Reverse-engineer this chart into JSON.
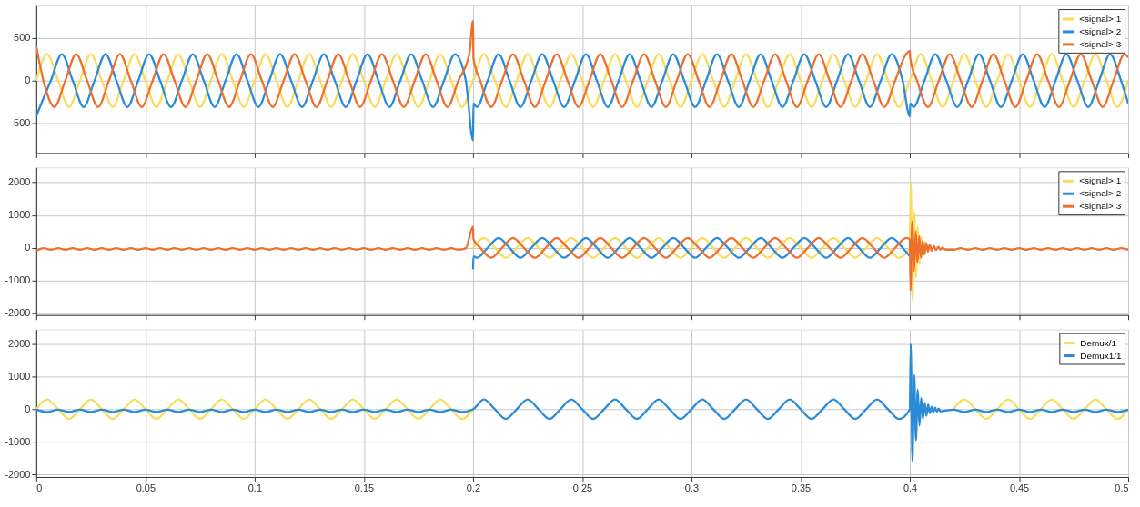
{
  "chart_data": [
    {
      "type": "line",
      "xlim": [
        0,
        0.5
      ],
      "xticks": [
        0,
        0.05,
        0.1,
        0.15,
        0.2,
        0.25,
        0.3,
        0.35,
        0.4,
        0.45,
        0.5
      ],
      "ylim": [
        -850,
        880
      ],
      "yticks": [
        -500,
        0,
        500
      ],
      "grid": true,
      "legend": "top right",
      "tick_labels": "y",
      "x": [
        0,
        0.005,
        0.01,
        0.015,
        0.02,
        0.025,
        0.03,
        0.035,
        0.04,
        0.045,
        0.05,
        0.055,
        0.06,
        0.065,
        0.07,
        0.075,
        0.08,
        0.085,
        0.09,
        0.095,
        0.1,
        0.105,
        0.11,
        0.115,
        0.12,
        0.125,
        0.13,
        0.135,
        0.14,
        0.145,
        0.15,
        0.155,
        0.16,
        0.165,
        0.17,
        0.175,
        0.18,
        0.185,
        0.19,
        0.195,
        0.2,
        0.205,
        0.21,
        0.215,
        0.22,
        0.225,
        0.23,
        0.235,
        0.24,
        0.245,
        0.25,
        0.255,
        0.26,
        0.265,
        0.27,
        0.275,
        0.28,
        0.285,
        0.29,
        0.295,
        0.3,
        0.305,
        0.31,
        0.315,
        0.32,
        0.325,
        0.33,
        0.335,
        0.34,
        0.345,
        0.35,
        0.355,
        0.36,
        0.365,
        0.37,
        0.375,
        0.38,
        0.385,
        0.39,
        0.395,
        0.4,
        0.405,
        0.41,
        0.415,
        0.42,
        0.425,
        0.43,
        0.435,
        0.44,
        0.445,
        0.45,
        0.455,
        0.46,
        0.465,
        0.47,
        0.475,
        0.48,
        0.485,
        0.49,
        0.495,
        0.5
      ],
      "series": [
        {
          "name": "<signal>:1",
          "color": "#f9dc5c",
          "values": [
            0,
            310,
            0,
            -310,
            0,
            310,
            0,
            -310,
            0,
            310,
            0,
            -310,
            0,
            310,
            0,
            -310,
            0,
            310,
            0,
            -310,
            0,
            310,
            0,
            -310,
            0,
            310,
            0,
            -310,
            0,
            310,
            0,
            -310,
            0,
            310,
            0,
            -310,
            0,
            310,
            0,
            -310,
            0,
            310,
            0,
            -310,
            0,
            310,
            0,
            -310,
            0,
            310,
            0,
            -310,
            0,
            310,
            0,
            -310,
            0,
            310,
            0,
            -310,
            0,
            310,
            0,
            -310,
            0,
            310,
            0,
            -310,
            0,
            310,
            0,
            -310,
            0,
            310,
            0,
            -310,
            0,
            310,
            0,
            -310,
            0,
            310,
            0,
            -310,
            0,
            310,
            0,
            -310,
            0,
            310,
            0,
            -310,
            0,
            310,
            0,
            -310,
            0,
            310,
            0,
            -310,
            0
          ]
        },
        {
          "name": "<signal>:2",
          "color": "#2a8bd8",
          "x": [
            0,
            0.0017,
            0.0067,
            0.0117,
            0.0167,
            0.0217,
            0.0267,
            0.0317,
            0.0367,
            0.0417,
            0.0467,
            0.0517,
            0.0567,
            0.0617,
            0.0667,
            0.0717,
            0.0767,
            0.0817,
            0.0867,
            0.0917,
            0.0967,
            0.1017,
            0.1067,
            0.1117,
            0.1167,
            0.1217,
            0.1267,
            0.1317,
            0.1367,
            0.1417,
            0.1467,
            0.1517,
            0.1567,
            0.1617,
            0.1667,
            0.1717,
            0.1767,
            0.1817,
            0.1867,
            0.1917,
            0.1967,
            0.2,
            0.2002,
            0.2017,
            0.2067,
            0.2117,
            0.2167,
            0.2217,
            0.2267,
            0.2317,
            0.2367,
            0.2417,
            0.2467,
            0.2517,
            0.2567,
            0.2617,
            0.2667,
            0.2717,
            0.2767,
            0.2817,
            0.2867,
            0.2917,
            0.2967,
            0.3017,
            0.3067,
            0.3117,
            0.3167,
            0.3217,
            0.3267,
            0.3317,
            0.3367,
            0.3417,
            0.3467,
            0.3517,
            0.3567,
            0.3617,
            0.3667,
            0.3717,
            0.3767,
            0.3817,
            0.3867,
            0.3917,
            0.3967,
            0.4,
            0.4002,
            0.4017,
            0.4067,
            0.4117,
            0.4167,
            0.4217,
            0.4267,
            0.4317,
            0.4367,
            0.4417,
            0.4467,
            0.4517,
            0.4567,
            0.4617,
            0.4667,
            0.4717,
            0.4767,
            0.4817,
            0.4867,
            0.4917,
            0.4967,
            0.5
          ],
          "values": [
            -420,
            -310,
            0,
            310,
            0,
            -310,
            0,
            310,
            0,
            -310,
            0,
            310,
            0,
            -310,
            0,
            310,
            0,
            -310,
            0,
            310,
            0,
            -310,
            0,
            310,
            0,
            -310,
            0,
            310,
            0,
            -310,
            0,
            310,
            0,
            -310,
            0,
            310,
            0,
            -310,
            0,
            310,
            0,
            -700,
            -270,
            -310,
            0,
            310,
            0,
            -310,
            0,
            310,
            0,
            -310,
            0,
            310,
            0,
            -310,
            0,
            310,
            0,
            -310,
            0,
            310,
            0,
            -310,
            0,
            310,
            0,
            -310,
            0,
            310,
            0,
            -310,
            0,
            310,
            0,
            -310,
            0,
            310,
            0,
            -310,
            0,
            310,
            0,
            -420,
            -270,
            -310,
            0,
            310,
            0,
            -310,
            0,
            310,
            0,
            -310,
            0,
            310,
            0,
            -310,
            0,
            310,
            0,
            -310,
            0,
            310,
            0,
            -270
          ]
        },
        {
          "name": "<signal>:3",
          "color": "#ee6f2e",
          "x": [
            0,
            0.0033,
            0.0083,
            0.0133,
            0.0183,
            0.0233,
            0.0283,
            0.0333,
            0.0383,
            0.0433,
            0.0483,
            0.0533,
            0.0583,
            0.0633,
            0.0683,
            0.0733,
            0.0783,
            0.0833,
            0.0883,
            0.0933,
            0.0983,
            0.1033,
            0.1083,
            0.1133,
            0.1183,
            0.1233,
            0.1283,
            0.1333,
            0.1383,
            0.1433,
            0.1483,
            0.1533,
            0.1583,
            0.1633,
            0.1683,
            0.1733,
            0.1783,
            0.1833,
            0.1883,
            0.1933,
            0.1983,
            0.2,
            0.2002,
            0.2033,
            0.2083,
            0.2133,
            0.2183,
            0.2233,
            0.2283,
            0.2333,
            0.2383,
            0.2433,
            0.2483,
            0.2533,
            0.2583,
            0.2633,
            0.2683,
            0.2733,
            0.2783,
            0.2833,
            0.2883,
            0.2933,
            0.2983,
            0.3033,
            0.3083,
            0.3133,
            0.3183,
            0.3233,
            0.3283,
            0.3333,
            0.3383,
            0.3433,
            0.3483,
            0.3533,
            0.3583,
            0.3633,
            0.3683,
            0.3733,
            0.3783,
            0.3833,
            0.3883,
            0.3933,
            0.3983,
            0.4,
            0.4002,
            0.4033,
            0.4083,
            0.4133,
            0.4183,
            0.4233,
            0.4283,
            0.4333,
            0.4383,
            0.4433,
            0.4483,
            0.4533,
            0.4583,
            0.4633,
            0.4683,
            0.4733,
            0.4783,
            0.4833,
            0.4883,
            0.4933,
            0.4983,
            0.5
          ],
          "values": [
            400,
            0,
            -310,
            0,
            310,
            0,
            -310,
            0,
            310,
            0,
            -310,
            0,
            310,
            0,
            -310,
            0,
            310,
            0,
            -310,
            0,
            310,
            0,
            -310,
            0,
            310,
            0,
            -310,
            0,
            310,
            0,
            -310,
            0,
            310,
            0,
            -310,
            0,
            310,
            0,
            -310,
            0,
            310,
            700,
            260,
            0,
            -310,
            0,
            310,
            0,
            -310,
            0,
            310,
            0,
            -310,
            0,
            310,
            0,
            -310,
            0,
            310,
            0,
            -310,
            0,
            310,
            0,
            -310,
            0,
            310,
            0,
            -310,
            0,
            310,
            0,
            -310,
            0,
            310,
            0,
            -310,
            0,
            310,
            0,
            -310,
            0,
            310,
            350,
            260,
            0,
            -310,
            0,
            310,
            0,
            -310,
            0,
            310,
            0,
            -310,
            0,
            310,
            0,
            -310,
            0,
            310,
            0,
            -310,
            0,
            310,
            270
          ]
        }
      ]
    },
    {
      "type": "line",
      "xlim": [
        0,
        0.5
      ],
      "xticks": [
        0,
        0.05,
        0.1,
        0.15,
        0.2,
        0.25,
        0.3,
        0.35,
        0.4,
        0.45,
        0.5
      ],
      "ylim": [
        -2050,
        2450
      ],
      "yticks": [
        -2000,
        -1000,
        0,
        1000,
        2000
      ],
      "grid": true,
      "legend": "top right",
      "tick_labels": "y",
      "series": [
        {
          "name": "<signal>:1",
          "color": "#f9dc5c",
          "x": [
            0.2,
            0.205,
            0.21,
            0.215,
            0.22,
            0.225,
            0.23,
            0.235,
            0.24,
            0.245,
            0.25,
            0.255,
            0.26,
            0.265,
            0.27,
            0.275,
            0.28,
            0.285,
            0.29,
            0.295,
            0.3,
            0.305,
            0.31,
            0.315,
            0.32,
            0.325,
            0.33,
            0.335,
            0.34,
            0.345,
            0.35,
            0.355,
            0.36,
            0.365,
            0.37,
            0.375,
            0.38,
            0.385,
            0.39,
            0.395,
            0.4,
            0.4004,
            0.4012,
            0.402,
            0.4028,
            0.4036,
            0.4044,
            0.4052,
            0.406,
            0.4068
          ],
          "values": [
            0,
            300,
            0,
            -300,
            0,
            300,
            0,
            -300,
            0,
            300,
            0,
            -300,
            0,
            300,
            0,
            -300,
            0,
            300,
            0,
            -300,
            0,
            300,
            0,
            -300,
            0,
            300,
            0,
            -300,
            0,
            300,
            0,
            -300,
            0,
            300,
            0,
            -300,
            0,
            300,
            0,
            -300,
            0,
            2000,
            -1600,
            1100,
            -900,
            650,
            -500,
            350,
            -300,
            200
          ]
        },
        {
          "name": "<signal>:2",
          "color": "#2a8bd8",
          "x": [
            0.2,
            0.2002,
            0.2017,
            0.2067,
            0.2117,
            0.2167,
            0.2217,
            0.2267,
            0.2317,
            0.2367,
            0.2417,
            0.2467,
            0.2517,
            0.2567,
            0.2617,
            0.2667,
            0.2717,
            0.2767,
            0.2817,
            0.2867,
            0.2917,
            0.2967,
            0.3017,
            0.3067,
            0.3117,
            0.3167,
            0.3217,
            0.3267,
            0.3317,
            0.3367,
            0.3417,
            0.3467,
            0.3517,
            0.3567,
            0.3617,
            0.3667,
            0.3717,
            0.3767,
            0.3817,
            0.3867,
            0.3917,
            0.3967,
            0.4
          ],
          "values": [
            -650,
            -260,
            -300,
            0,
            300,
            0,
            -300,
            0,
            300,
            0,
            -300,
            0,
            300,
            0,
            -300,
            0,
            300,
            0,
            -300,
            0,
            300,
            0,
            -300,
            0,
            300,
            0,
            -300,
            0,
            300,
            0,
            -300,
            0,
            300,
            0,
            -300,
            0,
            300,
            0,
            -300,
            0,
            300,
            0,
            -260
          ]
        },
        {
          "name": "<signal>:3",
          "color": "#ee6f2e",
          "x": [
            0,
            0.0033,
            0.0067,
            0.01,
            0.0133,
            0.0167,
            0.02,
            0.0233,
            0.0267,
            0.03,
            0.0333,
            0.0367,
            0.04,
            0.0433,
            0.0467,
            0.05,
            0.0533,
            0.0567,
            0.06,
            0.0633,
            0.0667,
            0.07,
            0.0733,
            0.0767,
            0.08,
            0.0833,
            0.0867,
            0.09,
            0.0933,
            0.0967,
            0.1,
            0.1033,
            0.1067,
            0.11,
            0.1133,
            0.1167,
            0.12,
            0.1233,
            0.1267,
            0.13,
            0.1333,
            0.1367,
            0.14,
            0.1433,
            0.1467,
            0.15,
            0.1533,
            0.1567,
            0.16,
            0.1633,
            0.1667,
            0.17,
            0.1733,
            0.1767,
            0.18,
            0.1833,
            0.1867,
            0.19,
            0.1933,
            0.1967,
            0.2,
            0.2002,
            0.2033,
            0.2083,
            0.2133,
            0.2183,
            0.2233,
            0.2283,
            0.2333,
            0.2383,
            0.2433,
            0.2483,
            0.2533,
            0.2583,
            0.2633,
            0.2683,
            0.2733,
            0.2783,
            0.2833,
            0.2883,
            0.2933,
            0.2983,
            0.3033,
            0.3083,
            0.3133,
            0.3183,
            0.3233,
            0.3283,
            0.3333,
            0.3383,
            0.3433,
            0.3483,
            0.3533,
            0.3583,
            0.3633,
            0.3683,
            0.3733,
            0.3783,
            0.3833,
            0.3883,
            0.3933,
            0.3983,
            0.4,
            0.4003,
            0.4011,
            0.4019,
            0.4027,
            0.4035,
            0.4043,
            0.4051,
            0.4059,
            0.4067,
            0.4075,
            0.4083,
            0.4091,
            0.41,
            0.411,
            0.412,
            0.413,
            0.414,
            0.415,
            0.416,
            0.42,
            0.4233,
            0.4267,
            0.43,
            0.4333,
            0.4367,
            0.44,
            0.4433,
            0.4467,
            0.45,
            0.4533,
            0.4567,
            0.46,
            0.4633,
            0.4667,
            0.47,
            0.4733,
            0.4767,
            0.48,
            0.4833,
            0.4867,
            0.49,
            0.4933,
            0.4967,
            0.5
          ],
          "values": [
            -100,
            -10,
            -60,
            -10,
            -60,
            -10,
            -60,
            -10,
            -60,
            -10,
            -60,
            -10,
            -60,
            -10,
            -60,
            -10,
            -60,
            -10,
            -60,
            -10,
            -60,
            -10,
            -60,
            -10,
            -60,
            -10,
            -60,
            -10,
            -60,
            -10,
            -60,
            -10,
            -60,
            -10,
            -60,
            -10,
            -60,
            -10,
            -60,
            -10,
            -60,
            -10,
            -60,
            -10,
            -60,
            -10,
            -60,
            -10,
            -60,
            -10,
            -60,
            -10,
            -60,
            -10,
            -60,
            -10,
            -60,
            -10,
            -60,
            -10,
            650,
            260,
            0,
            -300,
            0,
            300,
            0,
            -300,
            0,
            300,
            0,
            -300,
            0,
            300,
            0,
            -300,
            0,
            300,
            0,
            -300,
            0,
            300,
            0,
            -300,
            0,
            300,
            0,
            -300,
            0,
            300,
            0,
            -300,
            0,
            300,
            0,
            -300,
            0,
            300,
            0,
            -300,
            0,
            300,
            260,
            -1300,
            800,
            -700,
            500,
            -450,
            350,
            -300,
            200,
            -200,
            150,
            -120,
            100,
            -90,
            60,
            -70,
            30,
            -60,
            10,
            -50,
            -60,
            -10,
            -60,
            -10,
            -60,
            -10,
            -60,
            -10,
            -60,
            -10,
            -60,
            -10,
            -60,
            -10,
            -60,
            -10,
            -60,
            -10,
            -60,
            -10,
            -60,
            -10,
            -60,
            -10,
            -60
          ]
        }
      ]
    },
    {
      "type": "line",
      "xlim": [
        0,
        0.5
      ],
      "xticks": [
        0,
        0.05,
        0.1,
        0.15,
        0.2,
        0.25,
        0.3,
        0.35,
        0.4,
        0.45,
        0.5
      ],
      "ylim": [
        -2080,
        2450
      ],
      "yticks": [
        -2000,
        -1000,
        0,
        1000,
        2000
      ],
      "grid": true,
      "legend": "top right",
      "series": [
        {
          "name": "Demux/1",
          "color": "#f9dc5c",
          "x": [
            0,
            0.005,
            0.01,
            0.015,
            0.02,
            0.025,
            0.03,
            0.035,
            0.04,
            0.045,
            0.05,
            0.055,
            0.06,
            0.065,
            0.07,
            0.075,
            0.08,
            0.085,
            0.09,
            0.095,
            0.1,
            0.105,
            0.11,
            0.115,
            0.12,
            0.125,
            0.13,
            0.135,
            0.14,
            0.145,
            0.15,
            0.155,
            0.16,
            0.165,
            0.17,
            0.175,
            0.18,
            0.185,
            0.19,
            0.195,
            0.2,
            0.3,
            0.42,
            0.425,
            0.43,
            0.435,
            0.44,
            0.445,
            0.45,
            0.455,
            0.46,
            0.465,
            0.47,
            0.475,
            0.48,
            0.485,
            0.49,
            0.495,
            0.5
          ],
          "values": [
            0,
            300,
            0,
            -300,
            0,
            300,
            0,
            -300,
            0,
            300,
            0,
            -300,
            0,
            300,
            0,
            -300,
            0,
            300,
            0,
            -300,
            0,
            300,
            0,
            -300,
            0,
            300,
            0,
            -300,
            0,
            300,
            0,
            -300,
            0,
            300,
            0,
            -300,
            0,
            300,
            0,
            -300,
            0,
            null,
            0,
            300,
            0,
            -300,
            0,
            300,
            0,
            -300,
            0,
            300,
            0,
            -300,
            0,
            300,
            0,
            -300,
            0
          ]
        },
        {
          "name": "Demux1/1",
          "color": "#2a8bd8",
          "x": [
            0,
            0.005,
            0.01,
            0.015,
            0.02,
            0.025,
            0.03,
            0.035,
            0.04,
            0.045,
            0.05,
            0.055,
            0.06,
            0.065,
            0.07,
            0.075,
            0.08,
            0.085,
            0.09,
            0.095,
            0.1,
            0.105,
            0.11,
            0.115,
            0.12,
            0.125,
            0.13,
            0.135,
            0.14,
            0.145,
            0.15,
            0.155,
            0.16,
            0.165,
            0.17,
            0.175,
            0.18,
            0.185,
            0.19,
            0.195,
            0.2,
            0.205,
            0.21,
            0.215,
            0.22,
            0.225,
            0.23,
            0.235,
            0.24,
            0.245,
            0.25,
            0.255,
            0.26,
            0.265,
            0.27,
            0.275,
            0.28,
            0.285,
            0.29,
            0.295,
            0.3,
            0.305,
            0.31,
            0.315,
            0.32,
            0.325,
            0.33,
            0.335,
            0.34,
            0.345,
            0.35,
            0.355,
            0.36,
            0.365,
            0.37,
            0.375,
            0.38,
            0.385,
            0.39,
            0.395,
            0.4,
            0.4004,
            0.4012,
            0.402,
            0.4028,
            0.4036,
            0.4044,
            0.4052,
            0.406,
            0.4068,
            0.4076,
            0.4084,
            0.4092,
            0.41,
            0.4108,
            0.4116,
            0.4124,
            0.4132,
            0.414,
            0.42,
            0.425,
            0.43,
            0.435,
            0.44,
            0.445,
            0.45,
            0.455,
            0.46,
            0.465,
            0.47,
            0.475,
            0.48,
            0.485,
            0.49,
            0.495,
            0.5
          ],
          "values": [
            -10,
            -80,
            -10,
            -80,
            -10,
            -80,
            -10,
            -80,
            -10,
            -80,
            -10,
            -80,
            -10,
            -80,
            -10,
            -80,
            -10,
            -80,
            -10,
            -80,
            -10,
            -80,
            -10,
            -80,
            -10,
            -80,
            -10,
            -80,
            -10,
            -80,
            -10,
            -80,
            -10,
            -80,
            -10,
            -80,
            -10,
            -80,
            -10,
            -80,
            0,
            300,
            0,
            -300,
            0,
            300,
            0,
            -300,
            0,
            300,
            0,
            -300,
            0,
            300,
            0,
            -300,
            0,
            300,
            0,
            -300,
            0,
            300,
            0,
            -300,
            0,
            300,
            0,
            -300,
            0,
            300,
            0,
            -300,
            0,
            300,
            0,
            -300,
            0,
            300,
            0,
            -300,
            0,
            2000,
            -1600,
            1050,
            -950,
            600,
            -500,
            350,
            -300,
            200,
            -200,
            150,
            -120,
            80,
            -90,
            50,
            -70,
            20,
            -60,
            -10,
            -80,
            -10,
            -80,
            -10,
            -80,
            -10,
            -80,
            -10,
            -80,
            -10,
            -80,
            -10,
            -80,
            -10,
            -80,
            -10
          ]
        }
      ]
    }
  ]
}
